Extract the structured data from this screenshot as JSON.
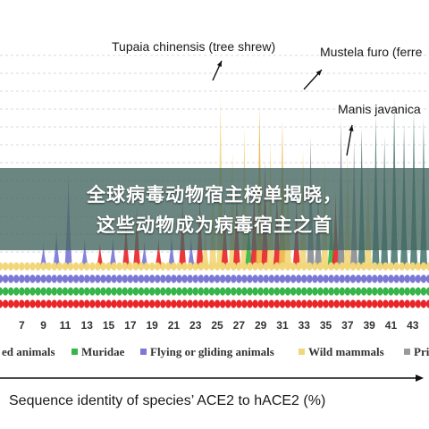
{
  "chart_data": {
    "type": "bar",
    "xlabel": "Sequence identity of species’ ACE2 to hACE2 (%)",
    "x_ticks": [
      "7",
      "9",
      "11",
      "13",
      "15",
      "17",
      "19",
      "21",
      "23",
      "25",
      "27",
      "29",
      "31",
      "33",
      "35",
      "37",
      "39",
      "41",
      "43"
    ],
    "annotations": [
      {
        "text": "Tupaia chinensis (tree shrew)"
      },
      {
        "text": "Mustela furo (ferre"
      },
      {
        "text": "Manis javanica"
      }
    ],
    "legend": [
      {
        "label": "ed animals",
        "color": "#e8262a"
      },
      {
        "label": "Muridae",
        "color": "#35b54a"
      },
      {
        "label": "Flying or gliding animals",
        "color": "#7b78d6"
      },
      {
        "label": "Wild mammals",
        "color": "#f2d77a"
      },
      {
        "label": "Pri",
        "color": "#9a9a9a"
      }
    ],
    "colors": {
      "red": "#e8262a",
      "green": "#35b54a",
      "blue": "#7b78d6",
      "yellow": "#f2d77a",
      "gray": "#8c8f93",
      "orange": "#f0b44a",
      "teal": "#4f7d76"
    },
    "spikes": [
      {
        "x": 9,
        "h": 0.12,
        "c": "blue"
      },
      {
        "x": 10.2,
        "h": 0.18,
        "c": "blue"
      },
      {
        "x": 11.3,
        "h": 0.45,
        "c": "blue"
      },
      {
        "x": 12.8,
        "h": 0.14,
        "c": "blue"
      },
      {
        "x": 14.2,
        "h": 0.12,
        "c": "red"
      },
      {
        "x": 15.4,
        "h": 0.15,
        "c": "blue"
      },
      {
        "x": 16.6,
        "h": 0.24,
        "c": "red"
      },
      {
        "x": 17.6,
        "h": 0.3,
        "c": "red"
      },
      {
        "x": 18.3,
        "h": 0.13,
        "c": "blue"
      },
      {
        "x": 19.6,
        "h": 0.14,
        "c": "red"
      },
      {
        "x": 20.8,
        "h": 0.16,
        "c": "blue"
      },
      {
        "x": 21.8,
        "h": 0.34,
        "c": "red"
      },
      {
        "x": 22.6,
        "h": 0.15,
        "c": "blue"
      },
      {
        "x": 23.4,
        "h": 0.36,
        "c": "red"
      },
      {
        "x": 23.9,
        "h": 0.22,
        "c": "yellow"
      },
      {
        "x": 24.6,
        "h": 0.44,
        "c": "yellow"
      },
      {
        "x": 25.3,
        "h": 0.82,
        "c": "yellow"
      },
      {
        "x": 25.7,
        "h": 0.3,
        "c": "red"
      },
      {
        "x": 26.4,
        "h": 0.55,
        "c": "yellow"
      },
      {
        "x": 26.8,
        "h": 0.38,
        "c": "red"
      },
      {
        "x": 27.5,
        "h": 0.66,
        "c": "yellow"
      },
      {
        "x": 27.9,
        "h": 0.26,
        "c": "green"
      },
      {
        "x": 28.4,
        "h": 0.42,
        "c": "red"
      },
      {
        "x": 28.9,
        "h": 0.78,
        "c": "orange"
      },
      {
        "x": 29.4,
        "h": 0.5,
        "c": "red"
      },
      {
        "x": 29.9,
        "h": 0.6,
        "c": "yellow"
      },
      {
        "x": 30.5,
        "h": 0.4,
        "c": "red"
      },
      {
        "x": 31.0,
        "h": 0.7,
        "c": "orange"
      },
      {
        "x": 31.5,
        "h": 0.48,
        "c": "yellow"
      },
      {
        "x": 32.3,
        "h": 0.34,
        "c": "red"
      },
      {
        "x": 32.9,
        "h": 0.56,
        "c": "yellow"
      },
      {
        "x": 33.6,
        "h": 0.62,
        "c": "gray"
      },
      {
        "x": 34.3,
        "h": 0.38,
        "c": "gray"
      },
      {
        "x": 34.9,
        "h": 0.52,
        "c": "yellow"
      },
      {
        "x": 35.5,
        "h": 0.3,
        "c": "green"
      },
      {
        "x": 35.9,
        "h": 0.36,
        "c": "red"
      },
      {
        "x": 36.4,
        "h": 0.7,
        "c": "gray"
      },
      {
        "x": 37.0,
        "h": 0.55,
        "c": "yellow"
      },
      {
        "x": 37.6,
        "h": 0.6,
        "c": "gray"
      },
      {
        "x": 38.3,
        "h": 0.66,
        "c": "teal"
      },
      {
        "x": 38.9,
        "h": 0.5,
        "c": "yellow"
      },
      {
        "x": 39.6,
        "h": 0.72,
        "c": "teal"
      },
      {
        "x": 40.4,
        "h": 0.62,
        "c": "teal"
      },
      {
        "x": 41.3,
        "h": 0.8,
        "c": "teal"
      },
      {
        "x": 42.2,
        "h": 0.68,
        "c": "teal"
      },
      {
        "x": 43.1,
        "h": 0.74,
        "c": "teal"
      },
      {
        "x": 44.0,
        "h": 0.7,
        "c": "teal"
      }
    ],
    "dot_rows": [
      {
        "color": "yellow",
        "from": 5,
        "to": 45
      },
      {
        "color": "blue",
        "from": 5,
        "to": 45
      },
      {
        "color": "green",
        "from": 5,
        "to": 45
      },
      {
        "color": "red",
        "from": 5,
        "to": 45
      }
    ],
    "x_range": [
      5,
      44.5
    ]
  },
  "overlay": {
    "line1": "全球病毒动物宿主榜单揭晓，",
    "line2": "这些动物成为病毒宿主之首"
  }
}
